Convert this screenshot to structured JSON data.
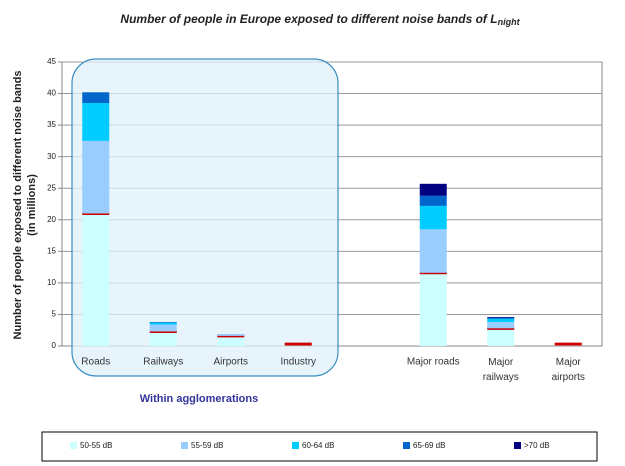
{
  "chart_data": {
    "type": "stacked_bar",
    "title": "Number of people in Europe exposed to different noise bands of L",
    "title_subscript": "night",
    "ylabel": [
      "Number of people exposed to different noise bands",
      "(in millions)"
    ],
    "group_label": "Within agglomerations",
    "categories": [
      "Roads",
      "Railways",
      "Airports",
      "Industry",
      null,
      "Major roads",
      "Major railways",
      "Major airports"
    ],
    "series": [
      {
        "name": "50-55 dB",
        "color": "#ccffff",
        "values": [
          21,
          2.3,
          1.6,
          0.3,
          null,
          11.6,
          2.8,
          0.3
        ]
      },
      {
        "name": "55-59 dB",
        "color": "#99ccff",
        "values": [
          11.5,
          1.1,
          0.3,
          0,
          null,
          6.9,
          1.0,
          0
        ]
      },
      {
        "name": "60-64 dB",
        "color": "#00ccff",
        "values": [
          6,
          0.3,
          0,
          0,
          null,
          3.7,
          0.5,
          0
        ]
      },
      {
        "name": "65-69 dB",
        "color": "#0066cc",
        "values": [
          1.7,
          0.1,
          0,
          0,
          null,
          1.6,
          0.2,
          0
        ]
      },
      {
        "name": ">70 dB",
        "color": "#000080",
        "values": [
          0,
          0,
          0,
          0,
          null,
          1.9,
          0.1,
          0
        ]
      }
    ],
    "threshold_color": "#cc0000",
    "ylim": [
      0,
      45
    ],
    "yticks": [
      0,
      5,
      10,
      15,
      20,
      25,
      30,
      35,
      40,
      45
    ],
    "grid": true,
    "legend": "bottom"
  }
}
